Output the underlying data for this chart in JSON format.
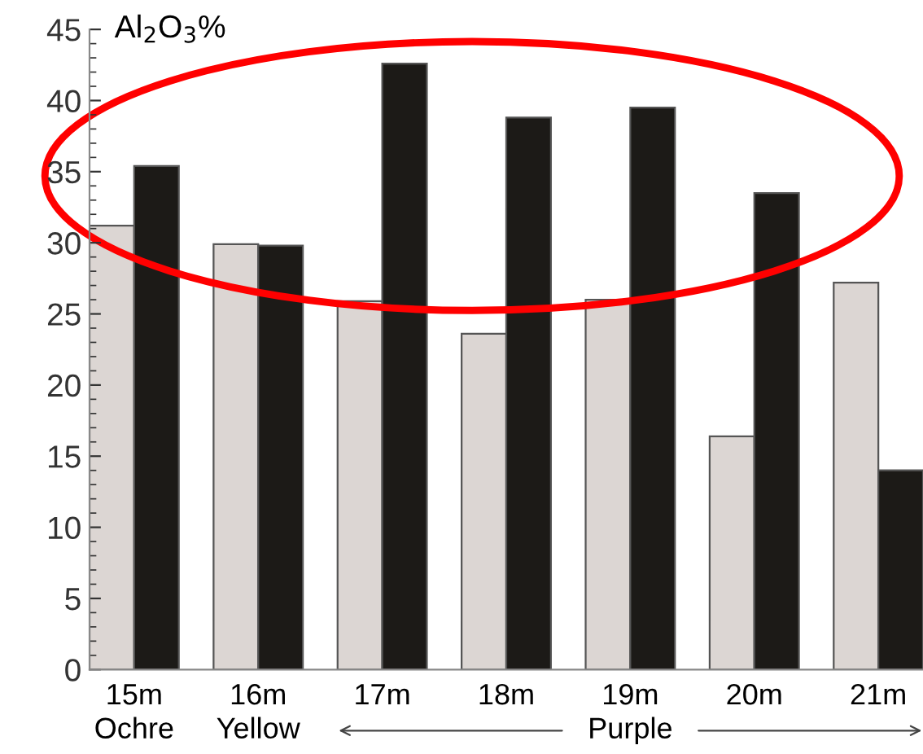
{
  "chart_data": {
    "type": "bar",
    "title": "Al$_{2}$O$_{3}$%",
    "categories": [
      "15m",
      "16m",
      "17m",
      "18m",
      "19m",
      "20m",
      "21m"
    ],
    "series": [
      {
        "color": "#dcd6d3",
        "values": [
          31.2,
          29.9,
          25.9,
          23.6,
          26.0,
          16.4,
          27.2
        ]
      },
      {
        "color": "#1c1a17",
        "values": [
          35.4,
          29.8,
          42.6,
          38.8,
          39.5,
          33.5,
          14.0
        ]
      }
    ],
    "ylim": [
      0,
      45
    ],
    "yticks": [
      0,
      5,
      10,
      15,
      20,
      25,
      30,
      35,
      40,
      45
    ],
    "annotations": [
      "Ochre",
      "Yellow",
      "Purple"
    ],
    "grid": false,
    "legend": false
  }
}
